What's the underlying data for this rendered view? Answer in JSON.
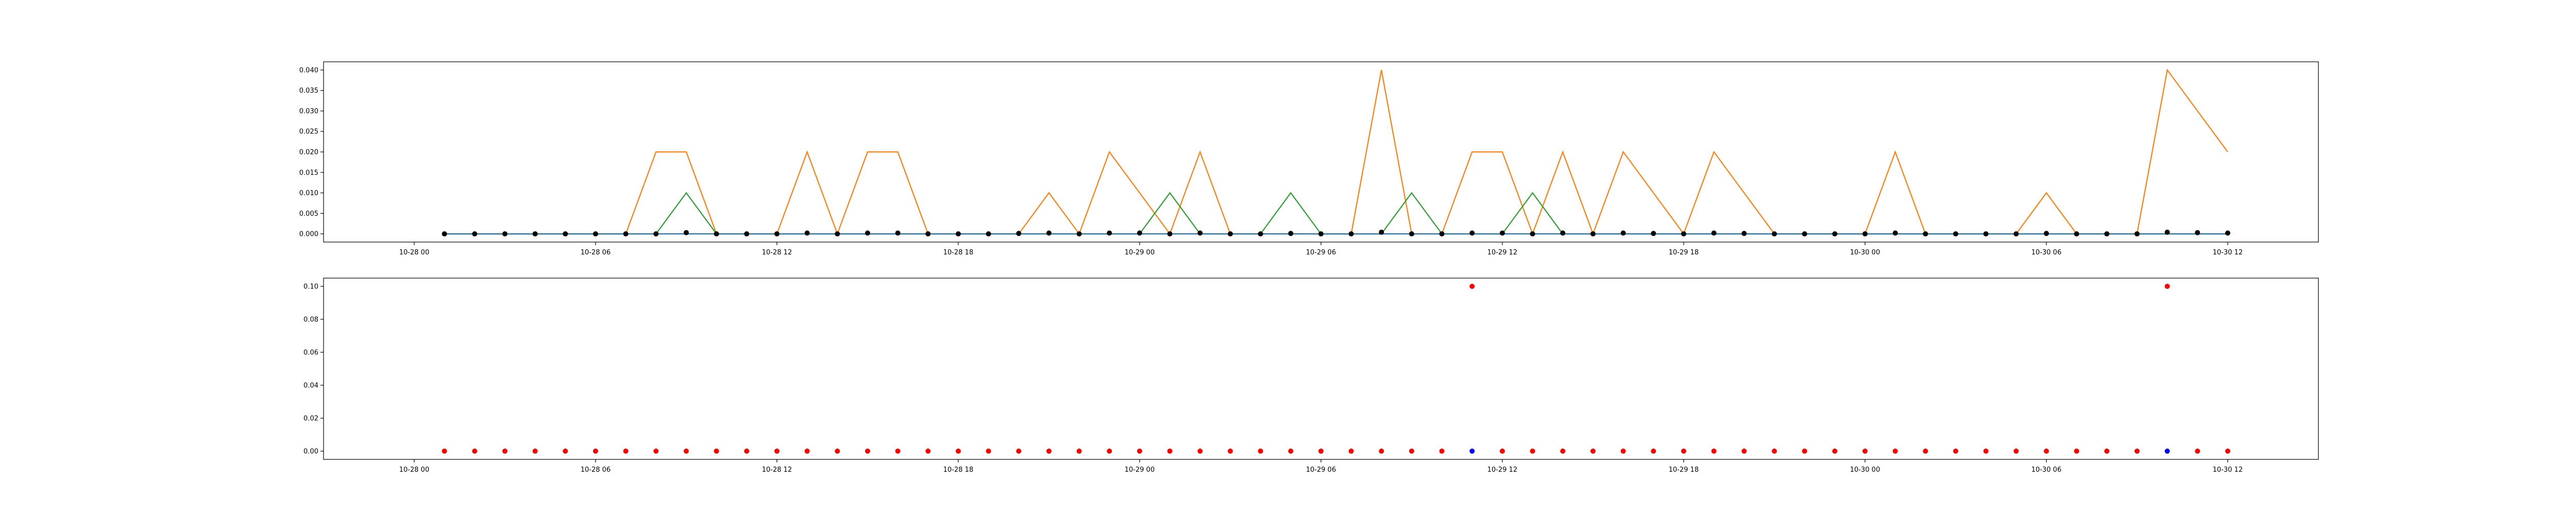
{
  "colors": {
    "line_blue": "#1f77b4",
    "line_orange": "#ff7f0e",
    "line_green": "#2ca02c",
    "point_black": "#000000",
    "point_red": "#ff0000",
    "point_blue": "#0000ff",
    "axes": "#000000",
    "background": "#ffffff"
  },
  "chart_data": [
    {
      "type": "line",
      "x_time": [
        "10-28 01:00",
        "10-28 02:00",
        "10-28 03:00",
        "10-28 04:00",
        "10-28 05:00",
        "10-28 06:00",
        "10-28 07:00",
        "10-28 08:00",
        "10-28 09:00",
        "10-28 10:00",
        "10-28 11:00",
        "10-28 12:00",
        "10-28 13:00",
        "10-28 14:00",
        "10-28 15:00",
        "10-28 16:00",
        "10-28 17:00",
        "10-28 18:00",
        "10-28 19:00",
        "10-28 20:00",
        "10-28 21:00",
        "10-28 22:00",
        "10-28 23:00",
        "10-29 00:00",
        "10-29 01:00",
        "10-29 02:00",
        "10-29 03:00",
        "10-29 04:00",
        "10-29 05:00",
        "10-29 06:00",
        "10-29 07:00",
        "10-29 08:00",
        "10-29 09:00",
        "10-29 10:00",
        "10-29 11:00",
        "10-29 12:00",
        "10-29 13:00",
        "10-29 14:00",
        "10-29 15:00",
        "10-29 16:00",
        "10-29 17:00",
        "10-29 18:00",
        "10-29 19:00",
        "10-29 20:00",
        "10-29 21:00",
        "10-29 22:00",
        "10-29 23:00",
        "10-30 00:00",
        "10-30 01:00",
        "10-30 02:00",
        "10-30 03:00",
        "10-30 04:00",
        "10-30 05:00",
        "10-30 06:00",
        "10-30 07:00",
        "10-30 08:00",
        "10-30 09:00",
        "10-30 10:00",
        "10-30 11:00",
        "10-30 12:00"
      ],
      "x_ticks": [
        "10-28 00",
        "10-28 06",
        "10-28 12",
        "10-28 18",
        "10-29 00",
        "10-29 06",
        "10-29 12",
        "10-29 18",
        "10-30 00",
        "10-30 06",
        "10-30 12"
      ],
      "y_ticks": [
        "0.000",
        "0.005",
        "0.010",
        "0.015",
        "0.020",
        "0.025",
        "0.030",
        "0.035",
        "0.040"
      ],
      "ylim": [
        -0.002,
        0.042
      ],
      "xlim": [
        "10-27 21:00",
        "10-30 15:00"
      ],
      "grid": false,
      "series": [
        {
          "color": "#ff7f0e",
          "values": [
            0,
            0,
            0,
            0,
            0,
            0,
            0,
            0.02,
            0.02,
            0,
            0,
            0,
            0.02,
            0,
            0.02,
            0.02,
            0,
            0,
            0,
            0,
            0.01,
            0,
            0.02,
            0.01,
            0,
            0.02,
            0,
            0,
            0,
            0,
            0,
            0.04,
            0,
            0,
            0.02,
            0.02,
            0,
            0.02,
            0,
            0.02,
            0.01,
            0,
            0.02,
            0.01,
            0,
            0,
            0,
            0,
            0.02,
            0,
            0,
            0,
            0,
            0.01,
            0,
            0,
            0,
            0.04,
            0.03,
            0.02
          ]
        },
        {
          "color": "#2ca02c",
          "values": [
            0,
            0,
            0,
            0,
            0,
            0,
            0,
            0,
            0.01,
            0,
            0,
            0,
            0,
            0,
            0,
            0,
            0,
            0,
            0,
            0,
            0,
            0,
            0,
            0,
            0.01,
            0,
            0,
            0,
            0.01,
            0,
            0,
            0,
            0.01,
            0,
            0,
            0,
            0.01,
            0,
            0,
            0,
            0,
            0,
            0,
            0,
            0,
            0,
            0,
            0,
            0,
            0,
            0,
            0,
            0,
            0,
            0,
            0,
            0,
            0,
            0,
            0
          ]
        },
        {
          "color": "#1f77b4",
          "values": [
            0,
            0,
            0,
            0,
            0,
            0,
            0,
            0,
            0,
            0,
            0,
            0,
            0,
            0,
            0,
            0,
            0,
            0,
            0,
            0,
            0,
            0,
            0,
            0,
            0,
            0,
            0,
            0,
            0,
            0,
            0,
            0,
            0,
            0,
            0,
            0,
            0,
            0,
            0,
            0,
            0,
            0,
            0,
            0,
            0,
            0,
            0,
            0,
            0,
            0,
            0,
            0,
            0,
            0,
            0,
            0,
            0,
            0,
            0,
            0
          ]
        }
      ],
      "points": {
        "color": "#000000",
        "values": [
          0,
          0,
          0,
          0,
          0,
          0,
          0,
          0,
          0.0003,
          0,
          0,
          0,
          0.0002,
          0,
          0.0002,
          0.0002,
          0,
          0,
          0,
          0.0001,
          0.0002,
          0,
          0.0002,
          0.0002,
          0,
          0.0002,
          0,
          0,
          0.0001,
          0,
          0,
          0.0004,
          0,
          0,
          0.0002,
          0.0002,
          0,
          0.0002,
          0,
          0.0002,
          0.0001,
          0,
          0.0002,
          0.0001,
          0,
          0,
          0,
          0,
          0.0002,
          0,
          0,
          0,
          0,
          0.0001,
          0,
          0,
          0,
          0.0004,
          0.0003,
          0.0002
        ]
      }
    },
    {
      "type": "scatter",
      "x_ticks": [
        "10-28 00",
        "10-28 06",
        "10-28 12",
        "10-28 18",
        "10-29 00",
        "10-29 06",
        "10-29 12",
        "10-29 18",
        "10-30 00",
        "10-30 06",
        "10-30 12"
      ],
      "y_ticks": [
        "0.00",
        "0.02",
        "0.04",
        "0.06",
        "0.08",
        "0.10"
      ],
      "ylim": [
        -0.005,
        0.105
      ],
      "xlim": [
        "10-27 21:00",
        "10-30 15:00"
      ],
      "grid": false,
      "red_points": [
        0,
        0,
        0,
        0,
        0,
        0,
        0,
        0,
        0,
        0,
        0,
        0,
        0,
        0,
        0,
        0,
        0,
        0,
        0,
        0,
        0,
        0,
        0,
        0,
        0,
        0,
        0,
        0,
        0,
        0,
        0,
        0,
        0,
        0,
        0.1,
        0,
        0,
        0,
        0,
        0,
        0,
        0,
        0,
        0,
        0,
        0,
        0,
        0,
        0,
        0,
        0,
        0,
        0,
        0,
        0,
        0,
        0,
        0.1,
        0,
        0
      ],
      "blue_points": [
        {
          "x": "10-29 11:00",
          "y": 0
        },
        {
          "x": "10-30 10:00",
          "y": 0
        }
      ]
    }
  ]
}
